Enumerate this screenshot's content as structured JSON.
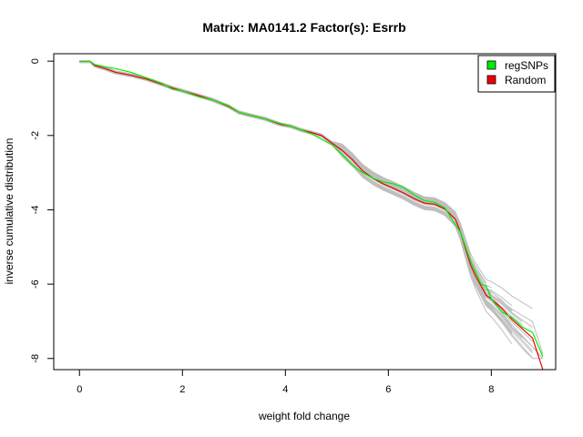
{
  "chart_data": {
    "type": "line",
    "title": "Matrix: MA0141.2 Factor(s): Esrrb",
    "xlabel": "weight fold change",
    "ylabel": "inverse cumulative distribution",
    "xlim": [
      -0.5,
      9.25
    ],
    "ylim": [
      -8.3,
      0.2
    ],
    "x_ticks": [
      0,
      2,
      4,
      6,
      8
    ],
    "y_ticks": [
      0,
      -2,
      -4,
      -6,
      -8
    ],
    "x_tick_labels": [
      "0",
      "2",
      "4",
      "6",
      "8"
    ],
    "y_tick_labels": [
      "0",
      "-2",
      "-4",
      "-6",
      "-8"
    ],
    "grid": false,
    "legend_position": "top-right",
    "legend": [
      {
        "label": "regSNPs",
        "color": "#00ee00"
      },
      {
        "label": "Random",
        "color": "#ee0000"
      }
    ],
    "colors": {
      "background_runs": "#bebebe",
      "regSNPs": "#00ee00",
      "Random": "#ee0000"
    },
    "series": [
      {
        "name": "regSNPs",
        "color": "#00ee00",
        "x": [
          0,
          0.2,
          0.3,
          0.4,
          0.5,
          0.7,
          1.0,
          1.3,
          1.6,
          1.8,
          2.0,
          2.3,
          2.6,
          2.9,
          3.1,
          3.3,
          3.6,
          3.9,
          4.1,
          4.3,
          4.5,
          4.7,
          4.9,
          5.1,
          5.3,
          5.5,
          5.7,
          5.9,
          6.1,
          6.3,
          6.5,
          6.7,
          6.9,
          7.1,
          7.3,
          7.4,
          7.5,
          7.6,
          7.7,
          7.8,
          7.9,
          8.0,
          8.2,
          8.4,
          8.6,
          8.8,
          9.0
        ],
        "y": [
          0,
          0,
          -0.1,
          -0.12,
          -0.15,
          -0.2,
          -0.3,
          -0.45,
          -0.6,
          -0.75,
          -0.8,
          -0.95,
          -1.05,
          -1.2,
          -1.38,
          -1.45,
          -1.55,
          -1.68,
          -1.75,
          -1.85,
          -1.95,
          -2.1,
          -2.25,
          -2.5,
          -2.8,
          -3.0,
          -3.15,
          -3.25,
          -3.3,
          -3.4,
          -3.6,
          -3.75,
          -3.8,
          -3.95,
          -4.4,
          -4.6,
          -5.0,
          -5.4,
          -5.7,
          -6.0,
          -6.05,
          -6.4,
          -6.75,
          -6.9,
          -7.15,
          -7.3,
          -7.95
        ]
      },
      {
        "name": "Random",
        "color": "#ee0000",
        "x": [
          0,
          0.2,
          0.3,
          0.5,
          0.7,
          1.0,
          1.3,
          1.6,
          1.8,
          2.0,
          2.3,
          2.6,
          2.9,
          3.1,
          3.3,
          3.6,
          3.9,
          4.1,
          4.3,
          4.5,
          4.7,
          4.9,
          5.1,
          5.3,
          5.5,
          5.7,
          5.9,
          6.1,
          6.3,
          6.5,
          6.7,
          6.9,
          7.1,
          7.3,
          7.4,
          7.5,
          7.6,
          7.7,
          7.8,
          7.9,
          8.0,
          8.2,
          8.4,
          8.6,
          8.8,
          9.0
        ],
        "y": [
          0,
          0,
          -0.12,
          -0.2,
          -0.3,
          -0.38,
          -0.48,
          -0.62,
          -0.72,
          -0.8,
          -0.92,
          -1.05,
          -1.22,
          -1.38,
          -1.45,
          -1.55,
          -1.7,
          -1.75,
          -1.85,
          -1.92,
          -2.0,
          -2.2,
          -2.4,
          -2.65,
          -2.95,
          -3.15,
          -3.3,
          -3.42,
          -3.55,
          -3.7,
          -3.82,
          -3.85,
          -3.98,
          -4.25,
          -4.6,
          -5.05,
          -5.5,
          -5.8,
          -6.05,
          -6.3,
          -6.4,
          -6.65,
          -6.95,
          -7.2,
          -7.45,
          -8.4
        ]
      }
    ]
  }
}
